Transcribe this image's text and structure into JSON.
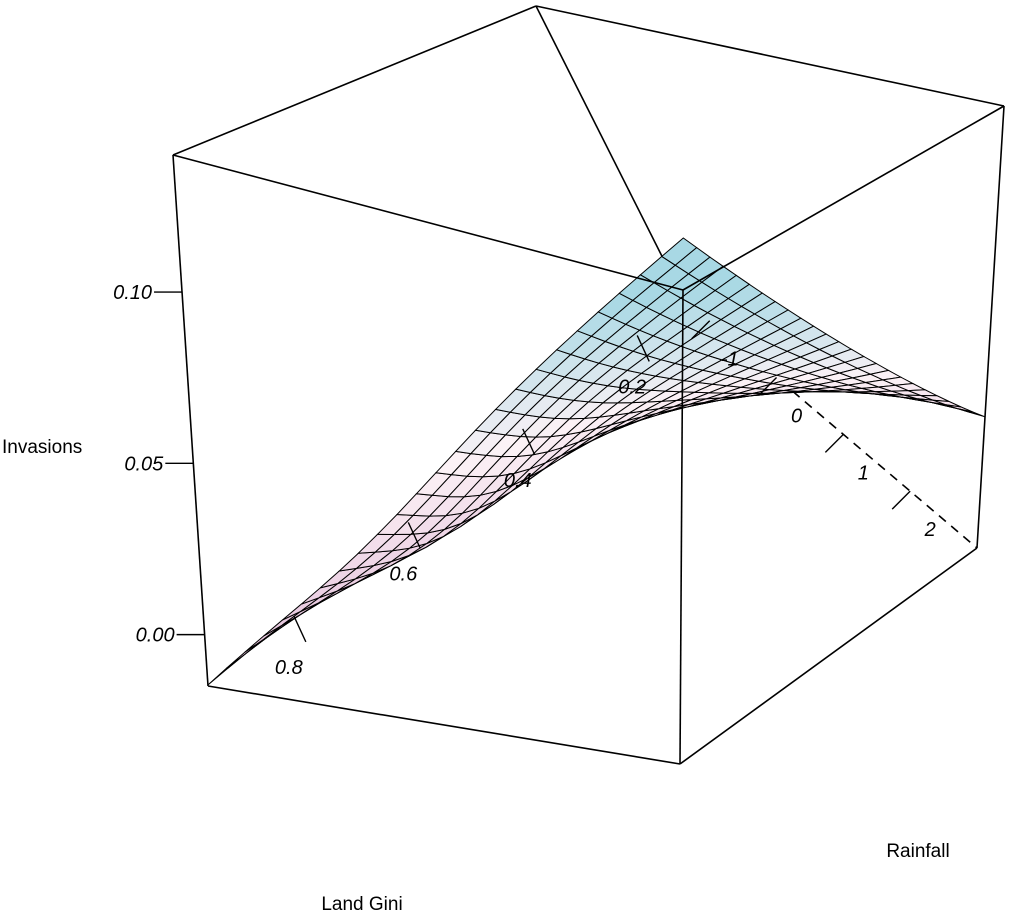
{
  "chart_data": {
    "type": "surface",
    "xlabel": "Land Gini",
    "ylabel": "Rainfall",
    "zlabel": "Invasions",
    "x_ticks": [
      "0.8",
      "0.6",
      "0.4",
      "0.2"
    ],
    "x_tick_values": [
      0.8,
      0.6,
      0.4,
      0.2
    ],
    "y_ticks": [
      "-1",
      "0",
      "1",
      "2"
    ],
    "y_tick_values": [
      -1,
      0,
      1,
      2
    ],
    "z_ticks": [
      "0.00",
      "0.05",
      "0.10"
    ],
    "z_tick_values": [
      0.0,
      0.05,
      0.1
    ],
    "xlim": [
      0.12,
      0.95
    ],
    "ylim": [
      -1.4,
      3.0
    ],
    "zlim": [
      -0.015,
      0.14
    ],
    "grid_size": [
      24,
      24
    ],
    "colors": {
      "low": "#e2bcd8",
      "mid": "#fcf2f6",
      "high": "#a8d8e4",
      "lines": "#000000"
    },
    "corners": [
      {
        "x": 0.95,
        "y": 3.0,
        "z": 0.139
      },
      {
        "x": 0.12,
        "y": 3.0,
        "z": 0.031
      },
      {
        "x": 0.95,
        "y": -1.4,
        "z": -0.014
      },
      {
        "x": 0.12,
        "y": -1.4,
        "z": -0.005
      }
    ]
  }
}
